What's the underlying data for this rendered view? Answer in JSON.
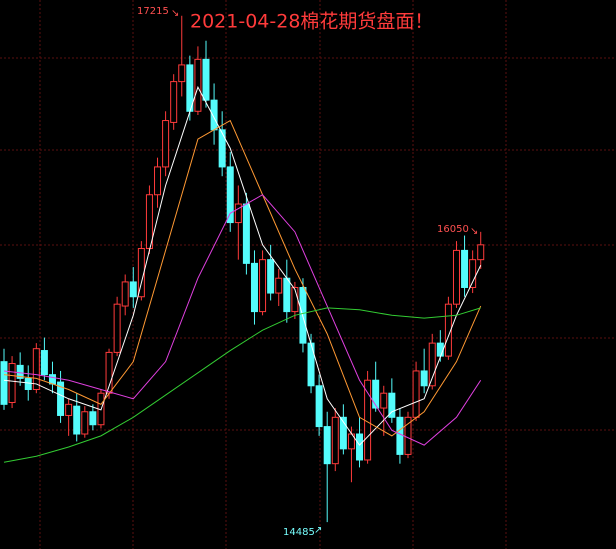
{
  "chart_data": {
    "type": "candlestick",
    "title": "2021-04-28棉花期货盘面！",
    "annotations": [
      17215,
      16050,
      14485
    ],
    "up_color": "#ff3b3b",
    "down_color": "#54fcfc",
    "ylim": [
      14340,
      17300
    ],
    "grid": true,
    "open": [
      15350,
      15130,
      15330,
      15260,
      15200,
      15410,
      15280,
      15240,
      15060,
      15110,
      14960,
      15080,
      15010,
      15180,
      15400,
      15650,
      15780,
      15700,
      15960,
      16250,
      16400,
      16640,
      16860,
      16950,
      16700,
      16980,
      16760,
      16600,
      16400,
      16100,
      16200,
      15880,
      15620,
      15900,
      15720,
      15800,
      15620,
      15750,
      15450,
      15220,
      15000,
      14800,
      15050,
      14880,
      14960,
      14820,
      15250,
      15100,
      15180,
      15050,
      14850,
      15050,
      15300,
      15220,
      15450,
      15380,
      15660,
      15950,
      15750,
      15900
    ],
    "high": [
      15420,
      15380,
      15400,
      15330,
      15450,
      15480,
      15350,
      15300,
      15150,
      15180,
      15110,
      15120,
      15200,
      15420,
      15700,
      15820,
      15860,
      16000,
      16300,
      16450,
      16700,
      16900,
      17215,
      17000,
      17050,
      17080,
      16850,
      16700,
      16480,
      16300,
      16260,
      15950,
      15950,
      15980,
      15850,
      15900,
      15780,
      15800,
      15500,
      15280,
      15080,
      15100,
      15120,
      15000,
      15050,
      15300,
      15350,
      15220,
      15260,
      15100,
      15080,
      15350,
      15420,
      15500,
      15520,
      15700,
      16000,
      16030,
      15950,
      16050
    ],
    "low": [
      15090,
      15100,
      15220,
      15140,
      15180,
      15250,
      15180,
      15020,
      14950,
      14920,
      14940,
      14980,
      14990,
      15150,
      15380,
      15600,
      15640,
      15680,
      15930,
      16180,
      16350,
      16600,
      16780,
      16650,
      16680,
      16720,
      16520,
      16350,
      16050,
      15900,
      15820,
      15550,
      15600,
      15680,
      15650,
      15560,
      15580,
      15400,
      15180,
      14950,
      14485,
      14760,
      14850,
      14700,
      14780,
      14800,
      15080,
      14950,
      15020,
      14800,
      14830,
      15030,
      15180,
      15200,
      15350,
      15360,
      15640,
      15700,
      15720,
      15850
    ],
    "close": [
      15120,
      15340,
      15260,
      15200,
      15420,
      15280,
      15230,
      15060,
      15120,
      14960,
      15080,
      15010,
      15180,
      15400,
      15660,
      15780,
      15700,
      15960,
      16250,
      16400,
      16650,
      16860,
      16950,
      16700,
      16980,
      16760,
      16600,
      16400,
      16100,
      16200,
      15880,
      15620,
      15900,
      15720,
      15800,
      15620,
      15750,
      15450,
      15220,
      15000,
      14800,
      15050,
      14880,
      14960,
      14820,
      15250,
      15100,
      15180,
      15050,
      14850,
      15050,
      15300,
      15220,
      15450,
      15380,
      15660,
      15950,
      15750,
      15900,
      15980
    ],
    "series": [
      {
        "color": "#ffffff",
        "x": [
          0,
          4,
          8,
          12,
          16,
          20,
          24,
          28,
          32,
          36,
          40,
          44,
          48,
          52,
          56,
          59
        ],
        "values": [
          15250,
          15230,
          15150,
          15090,
          15600,
          16300,
          16830,
          16500,
          15980,
          15740,
          15150,
          14900,
          15080,
          15150,
          15600,
          15870
        ]
      },
      {
        "color": "#ff9933",
        "x": [
          0,
          4,
          8,
          12,
          16,
          20,
          24,
          28,
          32,
          36,
          40,
          44,
          48,
          52,
          56,
          59
        ],
        "values": [
          15280,
          15260,
          15200,
          15120,
          15350,
          15950,
          16550,
          16650,
          16250,
          15850,
          15500,
          15050,
          14950,
          15080,
          15350,
          15650
        ]
      },
      {
        "color": "#e040e0",
        "x": [
          0,
          4,
          8,
          12,
          16,
          20,
          24,
          28,
          32,
          36,
          40,
          44,
          48,
          52,
          56,
          59
        ],
        "values": [
          15300,
          15280,
          15250,
          15200,
          15150,
          15350,
          15800,
          16150,
          16250,
          16050,
          15650,
          15250,
          14980,
          14900,
          15050,
          15250
        ]
      },
      {
        "color": "#33cc33",
        "x": [
          0,
          4,
          8,
          12,
          16,
          20,
          24,
          28,
          32,
          36,
          40,
          44,
          48,
          52,
          56,
          59
        ],
        "values": [
          14808,
          14840,
          14890,
          14950,
          15050,
          15170,
          15290,
          15410,
          15520,
          15600,
          15640,
          15630,
          15600,
          15585,
          15600,
          15640
        ]
      }
    ]
  }
}
